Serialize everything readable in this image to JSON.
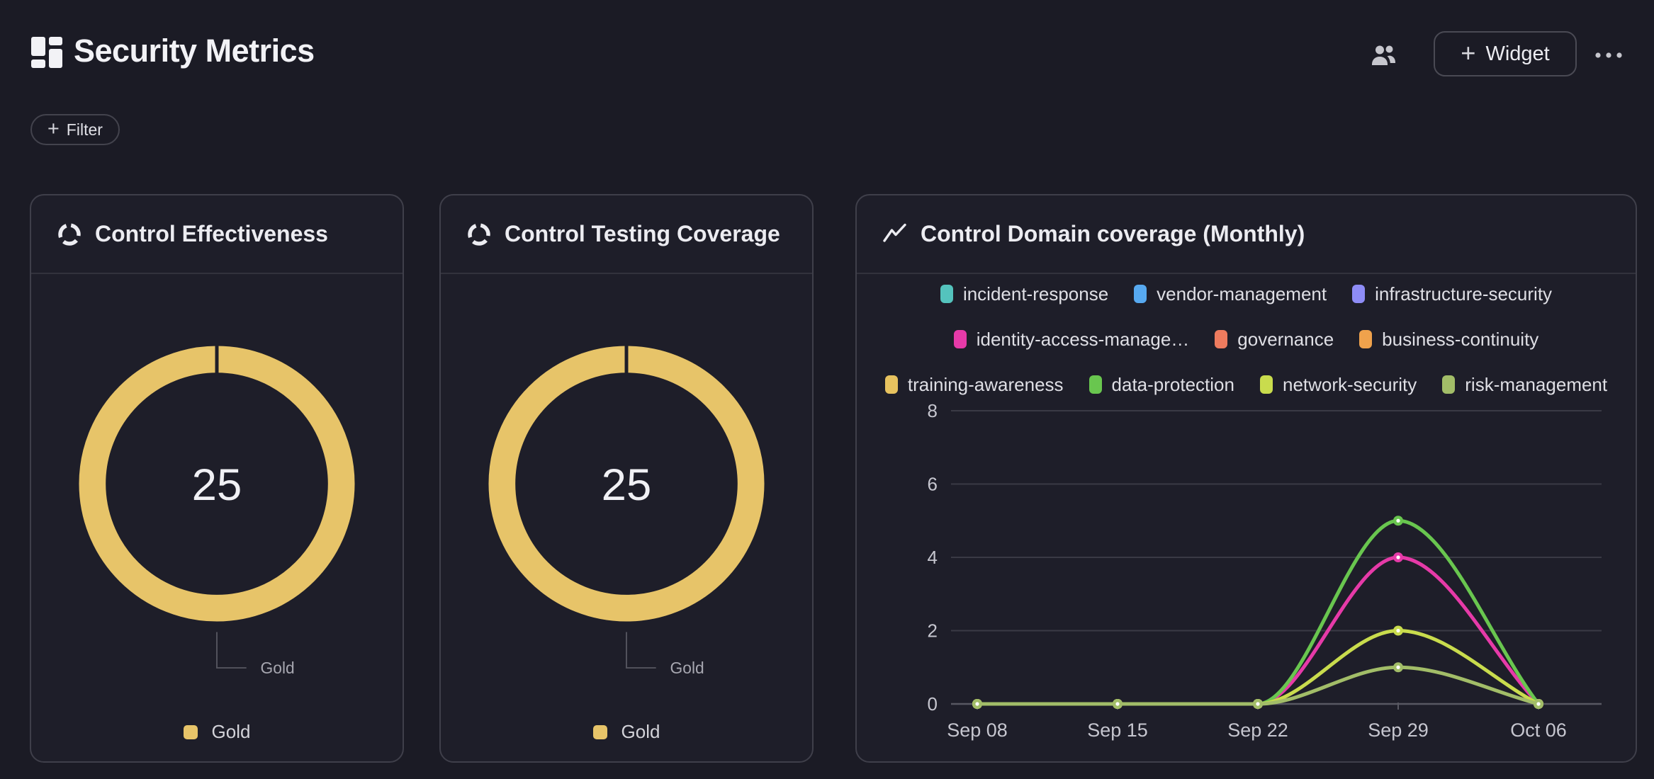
{
  "page": {
    "background": "#1b1b25",
    "card_background": "#1e1e29",
    "card_border": "#3f3f4a",
    "text_primary": "#f0f0f4",
    "text_muted": "#a7a7b0",
    "grid_line": "#3a3a45",
    "axis_line": "#585862",
    "accent_gold": "#e7c469"
  },
  "header": {
    "title": "Security Metrics",
    "widget_button_label": "Widget",
    "filter_button_label": "Filter"
  },
  "icons": {
    "plus": "+",
    "logo": "dashboard-grid",
    "collaborators": "two-people",
    "more": "ellipsis",
    "gauge_card": "donut-ring",
    "line_card": "trend-line"
  },
  "chart_data": [
    {
      "type": "donut",
      "title": "Control Effectiveness",
      "value": 25,
      "color": "#e7c469",
      "callout_label": "Gold",
      "segments": [
        {
          "label": "Gold",
          "value": 25
        }
      ],
      "legend": [
        "Gold"
      ],
      "legend_position": "bottom"
    },
    {
      "type": "donut",
      "title": "Control Testing Coverage",
      "value": 25,
      "color": "#e7c469",
      "callout_label": "Gold",
      "segments": [
        {
          "label": "Gold",
          "value": 25
        }
      ],
      "legend": [
        "Gold"
      ],
      "legend_position": "bottom"
    },
    {
      "type": "line",
      "title": "Control Domain coverage (Monthly)",
      "x": [
        "Sep 08",
        "Sep 15",
        "Sep 22",
        "Sep 29",
        "Oct 06"
      ],
      "ylim": [
        0,
        8
      ],
      "yticks": [
        0,
        2,
        4,
        6,
        8
      ],
      "grid": true,
      "legend_position": "top",
      "legend_rows": [
        [
          0,
          1,
          2
        ],
        [
          3,
          4,
          5
        ],
        [
          6,
          7,
          8,
          9
        ]
      ],
      "series": [
        {
          "name": "incident-response",
          "label": "incident-response",
          "color": "#54c3bd",
          "values": [
            0,
            0,
            0,
            null,
            0
          ]
        },
        {
          "name": "vendor-management",
          "label": "vendor-management",
          "color": "#57a9f0",
          "values": [
            0,
            0,
            0,
            null,
            0
          ]
        },
        {
          "name": "infrastructure-security",
          "label": "infrastructure-security",
          "color": "#8e8cf6",
          "values": [
            0,
            0,
            0,
            null,
            0
          ]
        },
        {
          "name": "identity-access-management",
          "label": "identity-access-manage…",
          "color": "#e63aa8",
          "values": [
            0,
            0,
            0,
            4,
            0
          ]
        },
        {
          "name": "governance",
          "label": "governance",
          "color": "#ee7b5e",
          "values": [
            0,
            0,
            0,
            null,
            0
          ]
        },
        {
          "name": "business-continuity",
          "label": "business-continuity",
          "color": "#f0a24c",
          "values": [
            0,
            0,
            0,
            null,
            0
          ]
        },
        {
          "name": "training-awareness",
          "label": "training-awareness",
          "color": "#e7c25f",
          "values": [
            0,
            0,
            0,
            null,
            0
          ]
        },
        {
          "name": "data-protection",
          "label": "data-protection",
          "color": "#69c64f",
          "values": [
            0,
            0,
            0,
            5,
            0
          ]
        },
        {
          "name": "network-security",
          "label": "network-security",
          "color": "#c9dc4d",
          "values": [
            0,
            0,
            0,
            2,
            0
          ]
        },
        {
          "name": "risk-management",
          "label": "risk-management",
          "color": "#a2bd68",
          "values": [
            0,
            0,
            0,
            1,
            0
          ]
        }
      ]
    }
  ]
}
